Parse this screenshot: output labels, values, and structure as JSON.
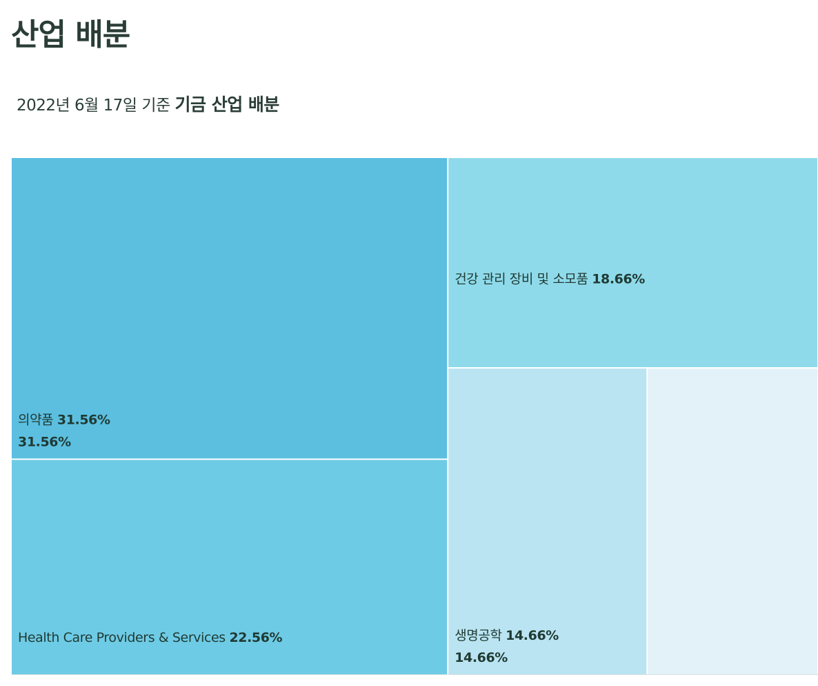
{
  "header": {
    "title": "산업 배분",
    "subtitle_date": "2022년 6월 17일 기준",
    "subtitle_main": "기금 산업 배분"
  },
  "chart_data": {
    "type": "treemap",
    "items": [
      {
        "name": "의약품",
        "value": 31.56,
        "label": "31.56%",
        "show_sub": true,
        "color": "#5cbfe0"
      },
      {
        "name": "Health Care Providers & Services",
        "value": 22.56,
        "label": "22.56%",
        "show_sub": false,
        "color": "#6ecbe5"
      },
      {
        "name": "건강 관리 장비 및 소모품",
        "value": 18.66,
        "label": "18.66%",
        "show_sub": false,
        "color": "#8fdaea"
      },
      {
        "name": "생명공학",
        "value": 14.66,
        "label": "14.66%",
        "show_sub": true,
        "color": "#bae4f1"
      },
      {
        "name": "",
        "value": 12.56,
        "label": "",
        "show_sub": false,
        "color": "#e3f2f8"
      }
    ]
  }
}
